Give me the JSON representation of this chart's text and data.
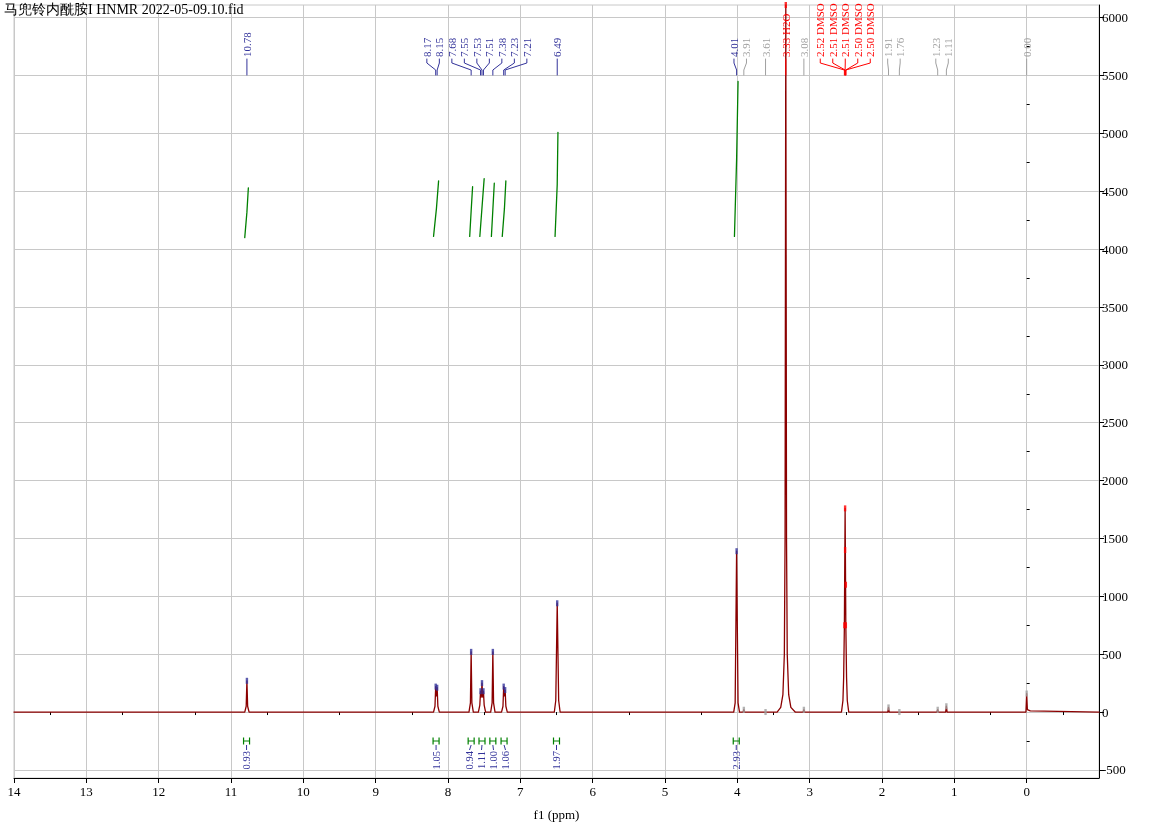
{
  "chart_data": {
    "type": "line",
    "title": "马兜铃内酰胺I HNMR 2022-05-09.10.fid",
    "xlabel": "f1 (ppm)",
    "xlim": [
      14,
      -1
    ],
    "xticks": [
      14,
      {
        "value": 13.5,
        "label": null
      },
      13,
      {
        "value": 12.5,
        "label": null
      },
      12,
      {
        "value": 11.5,
        "label": null
      },
      11,
      {
        "value": 10.5,
        "label": null
      },
      10,
      {
        "value": 9.5,
        "label": null
      },
      9,
      {
        "value": 8.5,
        "label": null
      },
      8,
      {
        "value": 7.5,
        "label": null
      },
      7,
      {
        "value": 6.5,
        "label": null
      },
      6,
      {
        "value": 5.5,
        "label": null
      },
      5,
      {
        "value": 4.5,
        "label": null
      },
      4,
      {
        "value": 3.5,
        "label": null
      },
      3,
      {
        "value": 2.5,
        "label": null
      },
      2,
      {
        "value": 1.5,
        "label": null
      },
      1,
      {
        "value": 0.5,
        "label": null
      },
      0,
      {
        "value": -0.5,
        "label": null
      }
    ],
    "ylim": [
      -570,
      6110
    ],
    "yticks": [
      -500,
      {
        "value": -250,
        "label": null
      },
      0,
      {
        "value": 250,
        "label": null
      },
      500,
      {
        "value": 750,
        "label": null
      },
      1000,
      {
        "value": 1250,
        "label": null
      },
      1500,
      {
        "value": 1750,
        "label": null
      },
      2000,
      {
        "value": 2250,
        "label": null
      },
      2500,
      {
        "value": 2750,
        "label": null
      },
      3000,
      {
        "value": 3250,
        "label": null
      },
      3500,
      {
        "value": 3750,
        "label": null
      },
      4000,
      {
        "value": 4250,
        "label": null
      },
      4500,
      {
        "value": 4750,
        "label": null
      },
      5000,
      {
        "value": 5250,
        "label": null
      },
      5500,
      {
        "value": 5750,
        "label": null
      },
      6000
    ],
    "grid": true,
    "marker": "none",
    "series": [
      {
        "color": "#8b0000",
        "x": [
          14,
          10.81,
          10.79,
          10.78,
          10.77,
          10.75,
          8.2,
          8.18,
          8.17,
          8.16,
          8.15,
          8.14,
          8.12,
          7.71,
          7.69,
          7.68,
          7.67,
          7.65,
          7.58,
          7.56,
          7.55,
          7.54,
          7.53,
          7.52,
          7.51,
          7.5,
          7.48,
          7.41,
          7.39,
          7.38,
          7.37,
          7.35,
          7.26,
          7.24,
          7.23,
          7.22,
          7.21,
          7.2,
          7.18,
          6.53,
          6.51,
          6.49,
          6.47,
          6.45,
          4.05,
          4.03,
          4.01,
          3.99,
          3.97,
          3.92,
          3.91,
          3.9,
          3.45,
          3.4,
          3.37,
          3.35,
          3.34,
          3.33,
          3.32,
          3.31,
          3.29,
          3.26,
          3.2,
          3.09,
          3.08,
          3.07,
          2.56,
          2.54,
          2.53,
          2.52,
          2.51,
          2.5,
          2.49,
          2.48,
          2.46,
          1.92,
          1.91,
          1.9,
          1.24,
          1.23,
          1.22,
          1.12,
          1.11,
          1.1,
          0.01,
          0,
          -0.01,
          -0.05,
          -1
        ],
        "values": [
          0,
          0,
          50,
          270,
          50,
          0,
          0,
          50,
          220,
          140,
          210,
          50,
          0,
          0,
          80,
          520,
          80,
          0,
          0,
          60,
          180,
          130,
          250,
          130,
          180,
          60,
          0,
          0,
          80,
          520,
          80,
          0,
          0,
          50,
          220,
          140,
          190,
          50,
          0,
          0,
          100,
          940,
          100,
          0,
          0,
          80,
          1390,
          80,
          0,
          0,
          20,
          0,
          0,
          40,
          150,
          500,
          1500,
          6110,
          1500,
          500,
          150,
          40,
          0,
          0,
          20,
          0,
          0,
          100,
          300,
          750,
          1760,
          750,
          300,
          100,
          0,
          0,
          40,
          0,
          0,
          20,
          0,
          0,
          50,
          0,
          0,
          160,
          20,
          10,
          0
        ]
      },
      {
        "color": "#008000",
        "x": [
          10.81,
          10.78,
          10.76
        ],
        "values": [
          4100,
          4320,
          4530
        ]
      },
      {
        "color": "#008000",
        "x": [
          8.2,
          8.16,
          8.13
        ],
        "values": [
          4110,
          4350,
          4590
        ]
      },
      {
        "color": "#008000",
        "x": [
          7.7,
          7.68,
          7.66
        ],
        "values": [
          4110,
          4330,
          4540
        ]
      },
      {
        "color": "#008000",
        "x": [
          7.56,
          7.53,
          7.5
        ],
        "values": [
          4110,
          4360,
          4610
        ]
      },
      {
        "color": "#008000",
        "x": [
          7.4,
          7.38,
          7.36
        ],
        "values": [
          4110,
          4340,
          4570
        ]
      },
      {
        "color": "#008000",
        "x": [
          7.25,
          7.22,
          7.2
        ],
        "values": [
          4110,
          4350,
          4590
        ]
      },
      {
        "color": "#008000",
        "x": [
          6.52,
          6.49,
          6.48
        ],
        "values": [
          4110,
          4560,
          5010
        ]
      },
      {
        "color": "#008000",
        "x": [
          4.04,
          4.01,
          3.99
        ],
        "values": [
          4110,
          4780,
          5450
        ]
      },
      {
        "type": "scatter",
        "marker": "square",
        "color": "#33339a",
        "x": [
          10.78,
          8.17,
          8.15,
          7.68,
          7.55,
          7.53,
          7.51,
          7.38,
          7.23,
          7.21,
          6.49,
          4.01
        ],
        "values": [
          270,
          220,
          210,
          520,
          180,
          250,
          180,
          520,
          220,
          190,
          940,
          1390
        ]
      },
      {
        "type": "scatter",
        "marker": "square",
        "color": "#a0a0a0",
        "x": [
          3.91,
          3.61,
          3.08,
          1.91,
          1.76,
          1.23,
          1.11,
          0
        ],
        "values": [
          20,
          0,
          20,
          40,
          0,
          20,
          50,
          160
        ]
      },
      {
        "type": "scatter",
        "marker": "square",
        "color": "#ff0000",
        "x": [
          3.33,
          2.52,
          2.51,
          2.51,
          2.5,
          2.5
        ],
        "values": [
          6110,
          750,
          1400,
          1760,
          1100,
          750
        ]
      }
    ],
    "annotations": [
      "10.78",
      "8.17",
      "8.15",
      "7.68",
      "7.55",
      "7.53",
      "7.51",
      "7.38",
      "7.23",
      "7.21",
      "6.49",
      "4.01",
      "3.91",
      "3.61",
      "3.08",
      "1.91",
      "1.76",
      "1.23",
      "1.11",
      "0.00",
      "3.33 H2O",
      "2.52 DMSO",
      "2.51 DMSO",
      "2.51 DMSO",
      "2.50 DMSO",
      "2.50 DMSO",
      "0.93",
      "1.05",
      "0.94",
      "1.11",
      "1.00",
      "1.06",
      "1.97",
      "2.93"
    ]
  }
}
